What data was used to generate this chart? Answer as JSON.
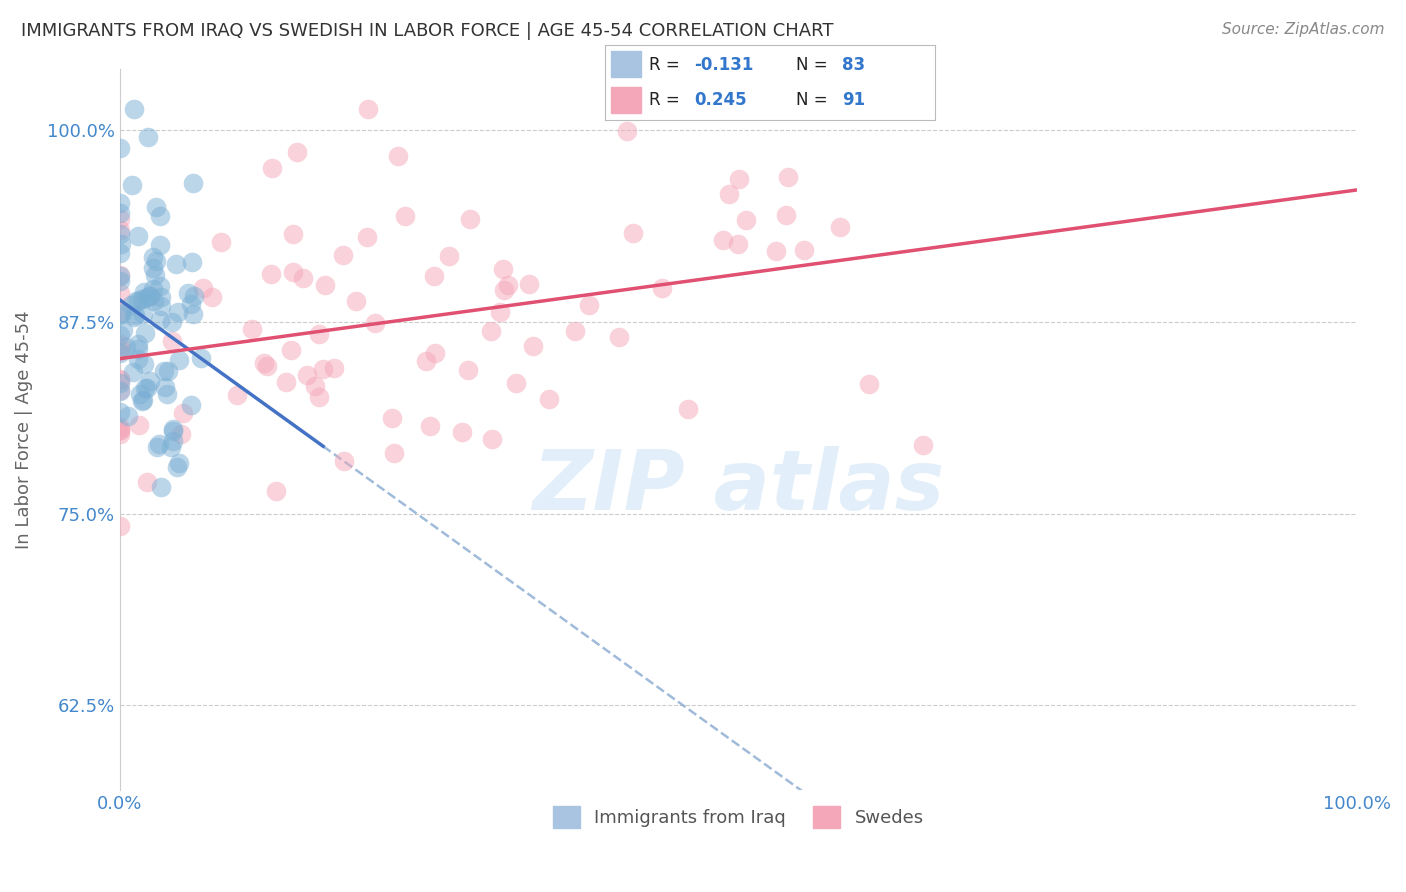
{
  "title": "IMMIGRANTS FROM IRAQ VS SWEDISH IN LABOR FORCE | AGE 45-54 CORRELATION CHART",
  "source_text": "Source: ZipAtlas.com",
  "ylabel": "In Labor Force | Age 45-54",
  "xlim": [
    0.0,
    1.0
  ],
  "ylim": [
    0.57,
    1.04
  ],
  "yticks": [
    0.625,
    0.75,
    0.875,
    1.0
  ],
  "ytick_labels": [
    "62.5%",
    "75.0%",
    "87.5%",
    "100.0%"
  ],
  "xticks": [
    0.0,
    1.0
  ],
  "xtick_labels": [
    "0.0%",
    "100.0%"
  ],
  "iraq_color": "#7aafd4",
  "iraq_line_color": "#4472c4",
  "swede_color": "#f4a7b9",
  "swede_line_color": "#e05070",
  "R_iraq": -0.131,
  "N_iraq": 83,
  "R_swede": 0.245,
  "N_swede": 91,
  "background_color": "#ffffff",
  "grid_color": "#cccccc",
  "title_color": "#333333",
  "tick_color": "#4488cc",
  "watermark_color": "#d0e4f5",
  "legend_box_color": "#f0f4f8"
}
